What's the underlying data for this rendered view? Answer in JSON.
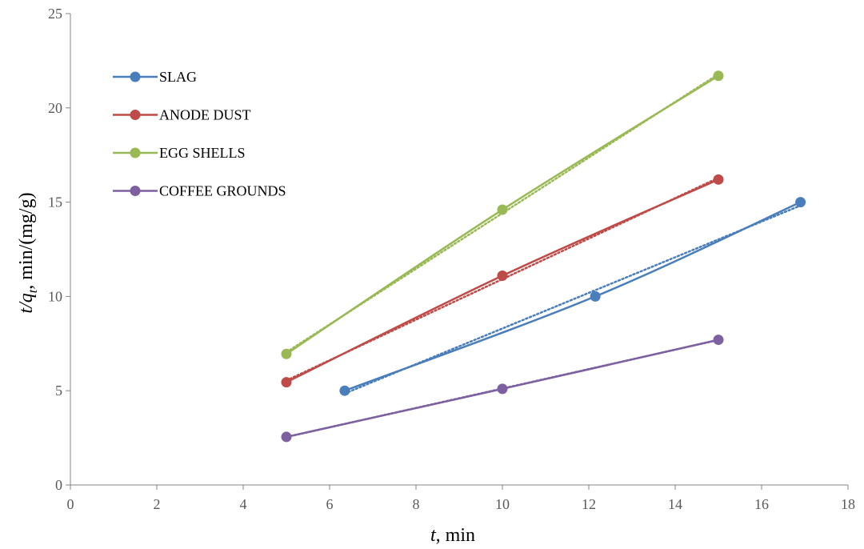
{
  "chart_data": {
    "type": "scatter",
    "xlabel": {
      "italic": "t",
      "rest": ", min"
    },
    "ylabel": {
      "italic": "t/q",
      "sub": "t",
      "rest": ", min/(mg/g)"
    },
    "xlim": [
      0,
      18
    ],
    "ylim": [
      0,
      25
    ],
    "xticks": [
      0,
      2,
      4,
      6,
      8,
      10,
      12,
      14,
      16,
      18
    ],
    "yticks": [
      0,
      5,
      10,
      15,
      20,
      25
    ],
    "xtick_labels": [
      "0",
      "2",
      "4",
      "6",
      "8",
      "10",
      "12",
      "14",
      "16",
      "18"
    ],
    "ytick_labels": [
      "0",
      "5",
      "10",
      "15",
      "20",
      "25"
    ],
    "grid": false,
    "legend_position": "top-left",
    "trendlines": "linear, dotted, one per series",
    "series": [
      {
        "name": "SLAG",
        "color": "#4a7ebb",
        "x": [
          6.35,
          12.15,
          16.9
        ],
        "y": [
          5.0,
          10.0,
          15.0
        ]
      },
      {
        "name": "ANODE DUST",
        "color": "#be4b48",
        "x": [
          5,
          10,
          15
        ],
        "y": [
          5.45,
          11.1,
          16.2
        ]
      },
      {
        "name": "EGG SHELLS",
        "color": "#98b954",
        "x": [
          5,
          10,
          15
        ],
        "y": [
          6.95,
          14.6,
          21.7
        ]
      },
      {
        "name": "COFFEE GROUNDS",
        "color": "#7d60a0",
        "x": [
          5,
          10,
          15
        ],
        "y": [
          2.55,
          5.1,
          7.7
        ]
      }
    ]
  }
}
